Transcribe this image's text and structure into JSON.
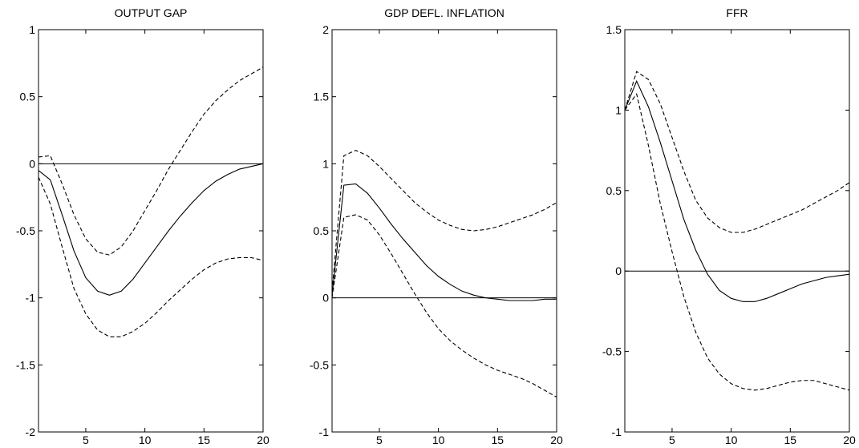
{
  "chart_data": [
    {
      "type": "line",
      "title": "OUTPUT GAP",
      "xlim": [
        1,
        20
      ],
      "ylim": [
        -2,
        1
      ],
      "xticks": [
        5,
        10,
        15,
        20
      ],
      "xtick_labels": [
        "5",
        "10",
        "15",
        "20"
      ],
      "yticks": [
        -2,
        -1.5,
        -1,
        -0.5,
        0,
        0.5,
        1
      ],
      "ytick_labels": [
        "-2",
        "-1.5",
        "-1",
        "-0.5",
        "0",
        "0.5",
        "1"
      ],
      "grid": false,
      "zero_line": 0,
      "x": [
        1,
        2,
        3,
        4,
        5,
        6,
        7,
        8,
        9,
        10,
        11,
        12,
        13,
        14,
        15,
        16,
        17,
        18,
        19,
        20
      ],
      "series": [
        {
          "style": "dashed",
          "values": [
            0.05,
            0.06,
            -0.15,
            -0.38,
            -0.56,
            -0.66,
            -0.68,
            -0.62,
            -0.5,
            -0.35,
            -0.2,
            -0.04,
            0.1,
            0.24,
            0.37,
            0.47,
            0.55,
            0.62,
            0.67,
            0.72
          ]
        },
        {
          "style": "solid",
          "values": [
            -0.05,
            -0.12,
            -0.38,
            -0.65,
            -0.85,
            -0.95,
            -0.98,
            -0.95,
            -0.86,
            -0.74,
            -0.62,
            -0.5,
            -0.39,
            -0.29,
            -0.2,
            -0.13,
            -0.08,
            -0.04,
            -0.02,
            0.0
          ]
        },
        {
          "style": "dashed",
          "values": [
            -0.1,
            -0.3,
            -0.62,
            -0.93,
            -1.12,
            -1.24,
            -1.29,
            -1.29,
            -1.25,
            -1.19,
            -1.11,
            -1.02,
            -0.94,
            -0.86,
            -0.79,
            -0.74,
            -0.71,
            -0.7,
            -0.7,
            -0.72
          ]
        }
      ]
    },
    {
      "type": "line",
      "title": "GDP DEFL. INFLATION",
      "xlim": [
        1,
        20
      ],
      "ylim": [
        -1,
        2
      ],
      "xticks": [
        5,
        10,
        15,
        20
      ],
      "xtick_labels": [
        "5",
        "10",
        "15",
        "20"
      ],
      "yticks": [
        -1,
        -0.5,
        0,
        0.5,
        1,
        1.5,
        2
      ],
      "ytick_labels": [
        "-1",
        "-0.5",
        "0",
        "0.5",
        "1",
        "1.5",
        "2"
      ],
      "grid": false,
      "zero_line": 0,
      "x": [
        1,
        2,
        3,
        4,
        5,
        6,
        7,
        8,
        9,
        10,
        11,
        12,
        13,
        14,
        15,
        16,
        17,
        18,
        19,
        20
      ],
      "series": [
        {
          "style": "dashed",
          "values": [
            0.05,
            1.06,
            1.1,
            1.06,
            0.98,
            0.89,
            0.8,
            0.71,
            0.64,
            0.58,
            0.54,
            0.51,
            0.5,
            0.51,
            0.53,
            0.56,
            0.59,
            0.62,
            0.66,
            0.71
          ]
        },
        {
          "style": "solid",
          "values": [
            0.02,
            0.84,
            0.85,
            0.78,
            0.67,
            0.55,
            0.44,
            0.34,
            0.24,
            0.16,
            0.1,
            0.05,
            0.02,
            0.0,
            -0.01,
            -0.02,
            -0.02,
            -0.02,
            -0.01,
            -0.01
          ]
        },
        {
          "style": "dashed",
          "values": [
            0.0,
            0.6,
            0.62,
            0.58,
            0.47,
            0.33,
            0.18,
            0.03,
            -0.11,
            -0.23,
            -0.32,
            -0.39,
            -0.45,
            -0.5,
            -0.54,
            -0.57,
            -0.6,
            -0.64,
            -0.69,
            -0.74
          ]
        }
      ]
    },
    {
      "type": "line",
      "title": "FFR",
      "xlim": [
        1,
        20
      ],
      "ylim": [
        -1,
        1.5
      ],
      "xticks": [
        5,
        10,
        15,
        20
      ],
      "xtick_labels": [
        "5",
        "10",
        "15",
        "20"
      ],
      "yticks": [
        -1,
        -0.5,
        0,
        0.5,
        1,
        1.5
      ],
      "ytick_labels": [
        "-1",
        "-0.5",
        "0",
        "0.5",
        "1",
        "1.5"
      ],
      "grid": false,
      "zero_line": 0,
      "x": [
        1,
        2,
        3,
        4,
        5,
        6,
        7,
        8,
        9,
        10,
        11,
        12,
        13,
        14,
        15,
        16,
        17,
        18,
        19,
        20
      ],
      "series": [
        {
          "style": "dashed",
          "values": [
            1.0,
            1.24,
            1.19,
            1.04,
            0.83,
            0.62,
            0.44,
            0.33,
            0.27,
            0.24,
            0.24,
            0.26,
            0.29,
            0.32,
            0.35,
            0.38,
            0.42,
            0.46,
            0.5,
            0.55
          ]
        },
        {
          "style": "solid",
          "values": [
            1.0,
            1.18,
            1.02,
            0.8,
            0.56,
            0.32,
            0.13,
            -0.02,
            -0.12,
            -0.17,
            -0.19,
            -0.19,
            -0.17,
            -0.14,
            -0.11,
            -0.08,
            -0.06,
            -0.04,
            -0.03,
            -0.02
          ]
        },
        {
          "style": "dashed",
          "values": [
            1.0,
            1.1,
            0.78,
            0.42,
            0.12,
            -0.16,
            -0.38,
            -0.54,
            -0.64,
            -0.7,
            -0.73,
            -0.74,
            -0.73,
            -0.71,
            -0.69,
            -0.68,
            -0.68,
            -0.7,
            -0.72,
            -0.74
          ]
        }
      ]
    }
  ]
}
